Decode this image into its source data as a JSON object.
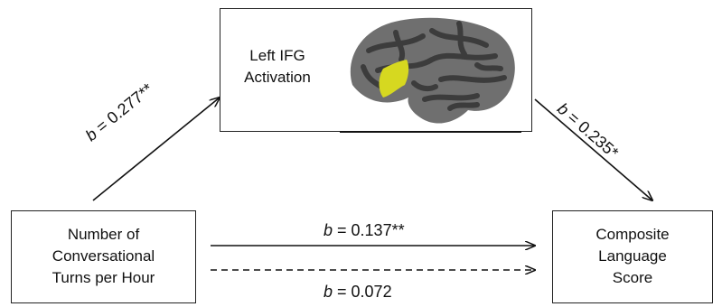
{
  "mediator": {
    "lines": [
      "Left IFG",
      "Activation"
    ]
  },
  "predictor": {
    "lines": [
      "Number of",
      "Conversational",
      "Turns per Hour"
    ]
  },
  "outcome": {
    "lines": [
      "Composite",
      "Language",
      "Score"
    ]
  },
  "paths": {
    "a": {
      "var": "b",
      "value": " = 0.277**"
    },
    "b": {
      "var": "b",
      "value": " = 0.235*"
    },
    "c_total": {
      "var": "b",
      "value": " = 0.137**"
    },
    "c_direct": {
      "var": "b",
      "value": " = 0.072"
    }
  },
  "colors": {
    "brain_gray": "#6f6f6f",
    "brain_dark": "#3c3c3c",
    "ifg_highlight": "#d6d820"
  },
  "icons": {
    "brain": "brain-icon"
  }
}
